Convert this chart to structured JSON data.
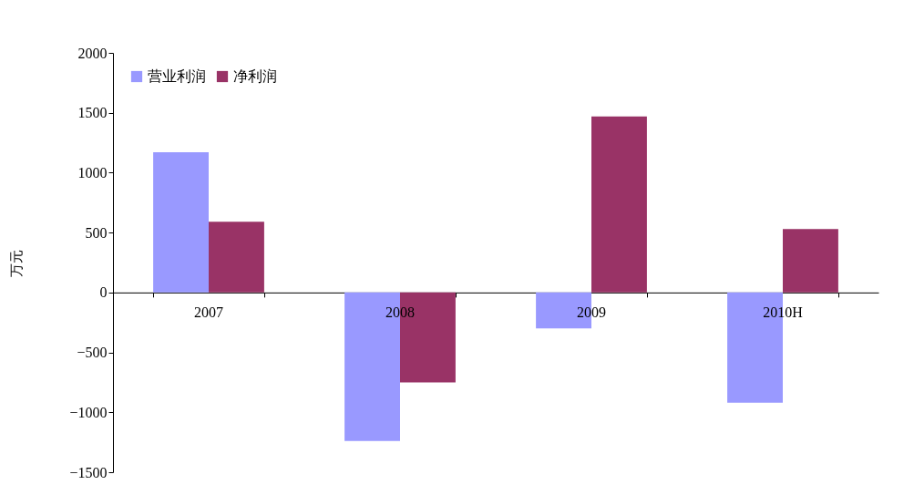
{
  "chart_data": {
    "type": "bar",
    "ylabel": "万元",
    "categories": [
      "2007",
      "2008",
      "2009",
      "2010H"
    ],
    "series": [
      {
        "name": "营业利润",
        "color": "#9999ff",
        "values": [
          1170,
          -1240,
          -300,
          -920
        ]
      },
      {
        "name": "净利润",
        "color": "#993366",
        "values": [
          590,
          -750,
          1470,
          530
        ]
      }
    ],
    "ylim": [
      -1500,
      2000
    ],
    "yticks": [
      -1500,
      -1000,
      -500,
      0,
      500,
      1000,
      1500,
      2000
    ],
    "grid": false,
    "legend": "top left"
  }
}
